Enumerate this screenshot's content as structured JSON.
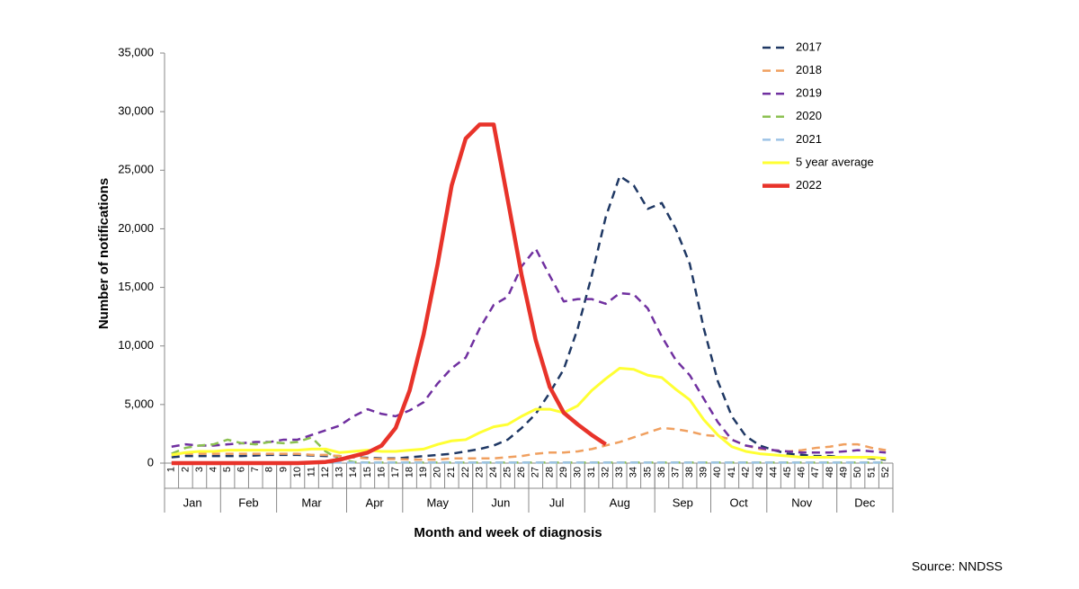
{
  "chart_data": {
    "type": "line",
    "y_label": "Number of notifications",
    "x_label": "Month and week of diagnosis",
    "source": "Source: NNDSS",
    "categories": [
      "1",
      "2",
      "3",
      "4",
      "5",
      "6",
      "7",
      "8",
      "9",
      "10",
      "11",
      "12",
      "13",
      "14",
      "15",
      "16",
      "17",
      "18",
      "19",
      "20",
      "21",
      "22",
      "23",
      "24",
      "25",
      "26",
      "27",
      "28",
      "29",
      "30",
      "31",
      "32",
      "33",
      "34",
      "35",
      "36",
      "37",
      "38",
      "39",
      "40",
      "41",
      "42",
      "43",
      "44",
      "45",
      "46",
      "47",
      "48",
      "49",
      "50",
      "51",
      "52"
    ],
    "months": [
      {
        "name": "Jan",
        "weeks": 4
      },
      {
        "name": "Feb",
        "weeks": 4
      },
      {
        "name": "Mar",
        "weeks": 5
      },
      {
        "name": "Apr",
        "weeks": 4
      },
      {
        "name": "May",
        "weeks": 5
      },
      {
        "name": "Jun",
        "weeks": 4
      },
      {
        "name": "Jul",
        "weeks": 4
      },
      {
        "name": "Aug",
        "weeks": 5
      },
      {
        "name": "Sep",
        "weeks": 4
      },
      {
        "name": "Oct",
        "weeks": 4
      },
      {
        "name": "Nov",
        "weeks": 5
      },
      {
        "name": "Dec",
        "weeks": 4
      }
    ],
    "ylim": [
      0,
      35000
    ],
    "yticks": [
      0,
      {
        "value": 5000,
        "label": "5,000"
      },
      {
        "value": 10000,
        "label": "10,000"
      },
      {
        "value": 15000,
        "label": "15,000"
      },
      {
        "value": 20000,
        "label": "20,000"
      },
      {
        "value": 25000,
        "label": "25,000"
      },
      {
        "value": 30000,
        "label": "30,000"
      },
      {
        "value": 35000,
        "label": "35,000"
      }
    ],
    "grid": false,
    "legend": "top-right",
    "series": [
      {
        "name": "2017",
        "color": "#1f3864",
        "style": "dashed",
        "width": 2.5,
        "values": [
          500,
          600,
          600,
          600,
          600,
          600,
          650,
          700,
          700,
          700,
          650,
          600,
          600,
          500,
          450,
          400,
          400,
          500,
          600,
          700,
          800,
          1000,
          1200,
          1500,
          2000,
          3000,
          4200,
          6000,
          8000,
          11500,
          16000,
          21000,
          24500,
          23700,
          21700,
          22200,
          20000,
          17000,
          11500,
          7000,
          4000,
          2300,
          1500,
          1100,
          800,
          700,
          600,
          600,
          500,
          500,
          400,
          300
        ]
      },
      {
        "name": "2018",
        "color": "#f0a060",
        "style": "dashed",
        "width": 2.5,
        "values": [
          700,
          800,
          800,
          800,
          800,
          800,
          800,
          800,
          800,
          800,
          700,
          700,
          600,
          500,
          400,
          350,
          350,
          300,
          300,
          300,
          400,
          400,
          400,
          400,
          500,
          600,
          800,
          900,
          900,
          1000,
          1200,
          1500,
          1800,
          2200,
          2600,
          3000,
          2900,
          2700,
          2400,
          2300,
          2000,
          1500,
          1200,
          1100,
          1000,
          1100,
          1300,
          1400,
          1600,
          1600,
          1300,
          1100
        ]
      },
      {
        "name": "2019",
        "color": "#7030a0",
        "style": "dashed",
        "width": 2.5,
        "values": [
          1400,
          1600,
          1500,
          1500,
          1600,
          1700,
          1800,
          1800,
          2000,
          2000,
          2400,
          2800,
          3200,
          4000,
          4600,
          4200,
          4000,
          4500,
          5200,
          6800,
          8100,
          9000,
          11500,
          13500,
          14200,
          16800,
          18300,
          16000,
          13800,
          14000,
          14000,
          13600,
          14500,
          14400,
          13200,
          10800,
          8800,
          7500,
          5500,
          3500,
          2000,
          1500,
          1300,
          1100,
          1000,
          900,
          900,
          900,
          1000,
          1100,
          1000,
          900
        ]
      },
      {
        "name": "2020",
        "color": "#8cc152",
        "style": "dashed",
        "width": 2.5,
        "values": [
          800,
          1300,
          1500,
          1600,
          2000,
          1700,
          1600,
          1800,
          1700,
          1800,
          2200,
          1000,
          300,
          100,
          50,
          50,
          50,
          50,
          50,
          50,
          50,
          50,
          50,
          50,
          50,
          50,
          50,
          50,
          50,
          50,
          50,
          50,
          50,
          50,
          50,
          50,
          50,
          50,
          50,
          50,
          50,
          50,
          50,
          50,
          50,
          50,
          50,
          50,
          50,
          50,
          50,
          50
        ]
      },
      {
        "name": "2021",
        "color": "#9dc3e6",
        "style": "dashed",
        "width": 2.5,
        "values": [
          50,
          50,
          50,
          50,
          50,
          50,
          50,
          50,
          50,
          50,
          50,
          50,
          50,
          50,
          50,
          50,
          50,
          50,
          50,
          50,
          50,
          50,
          50,
          50,
          50,
          50,
          50,
          50,
          50,
          50,
          50,
          50,
          50,
          50,
          50,
          50,
          50,
          50,
          50,
          50,
          50,
          50,
          50,
          50,
          50,
          50,
          50,
          50,
          50,
          50,
          50,
          50
        ]
      },
      {
        "name": "5 year average",
        "color": "#ffff33",
        "style": "solid",
        "width": 3,
        "values": [
          700,
          900,
          1000,
          1000,
          1100,
          1100,
          1100,
          1100,
          1100,
          1100,
          1200,
          1200,
          900,
          1000,
          1100,
          1000,
          1000,
          1100,
          1200,
          1600,
          1900,
          2000,
          2600,
          3100,
          3300,
          4000,
          4600,
          4600,
          4300,
          4900,
          6200,
          7200,
          8100,
          8000,
          7500,
          7300,
          6300,
          5400,
          3700,
          2400,
          1400,
          1000,
          800,
          700,
          600,
          500,
          500,
          500,
          500,
          500,
          500,
          400
        ]
      },
      {
        "name": "2022",
        "color": "#e8332a",
        "style": "solid",
        "width": 4.5,
        "values": [
          0,
          0,
          0,
          0,
          0,
          0,
          0,
          0,
          0,
          0,
          50,
          100,
          300,
          600,
          900,
          1500,
          3000,
          6200,
          11000,
          17000,
          23700,
          27700,
          28900,
          28900,
          22500,
          16000,
          10500,
          6500,
          4300,
          3300,
          2400,
          1600,
          null,
          null,
          null,
          null,
          null,
          null,
          null,
          null,
          null,
          null,
          null,
          null,
          null,
          null,
          null,
          null,
          null,
          null,
          null,
          null
        ]
      }
    ]
  }
}
